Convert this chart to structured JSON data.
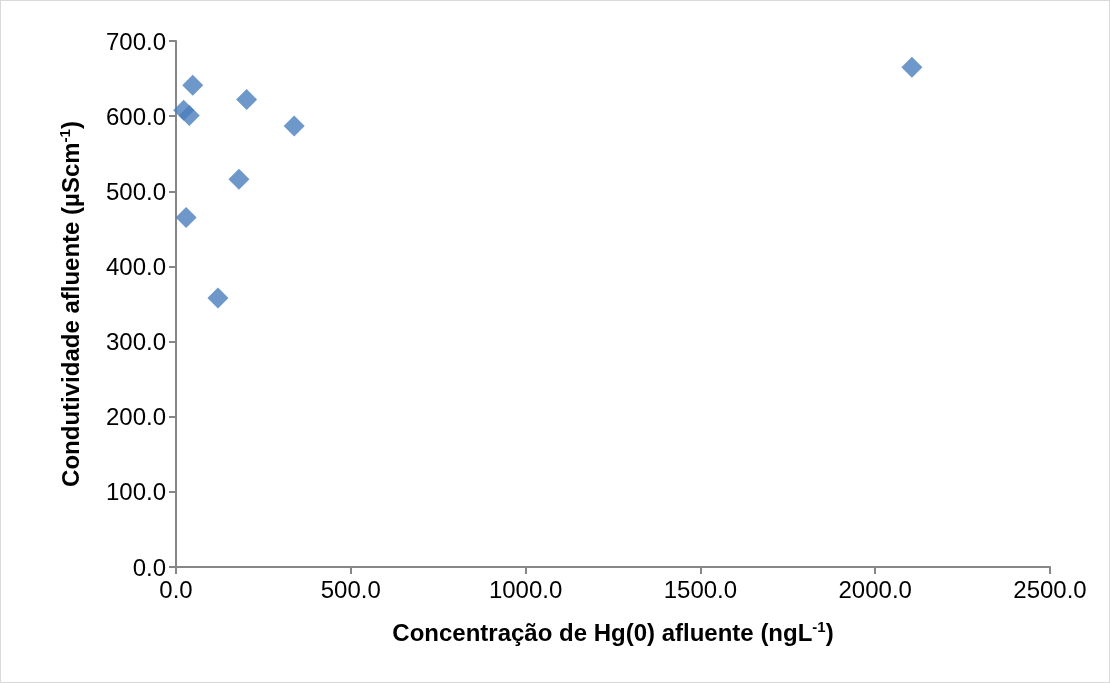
{
  "chart_data": {
    "type": "scatter",
    "xlabel": "Concentração de Hg(0) afluente (ngL$^{-1}$)",
    "ylabel": "Condutividade afluente (µScm$^{-1}$)",
    "x": [
      48,
      22,
      38,
      29,
      202,
      338,
      180,
      120,
      2105
    ],
    "series": [
      {
        "color": "#4a7ebb",
        "values": [
          641,
          608,
          601,
          465,
          622,
          587,
          516,
          358,
          665
        ]
      }
    ],
    "xlim": [
      0,
      2500
    ],
    "ylim": [
      0,
      700
    ],
    "xticks": [
      {
        "value": 0,
        "label": "0.0"
      },
      {
        "value": 500,
        "label": "500.0"
      },
      {
        "value": 1000,
        "label": "1000.0"
      },
      {
        "value": 1500,
        "label": "1500.0"
      },
      {
        "value": 2000,
        "label": "2000.0"
      },
      {
        "value": 2500,
        "label": "2500.0"
      }
    ],
    "yticks": [
      {
        "value": 0,
        "label": "0.0"
      },
      {
        "value": 100,
        "label": "100.0"
      },
      {
        "value": 200,
        "label": "200.0"
      },
      {
        "value": 300,
        "label": "300.0"
      },
      {
        "value": 400,
        "label": "400.0"
      },
      {
        "value": 500,
        "label": "500.0"
      },
      {
        "value": 600,
        "label": "600.0"
      },
      {
        "value": 700,
        "label": "700.0"
      }
    ],
    "marker": "diamond"
  }
}
